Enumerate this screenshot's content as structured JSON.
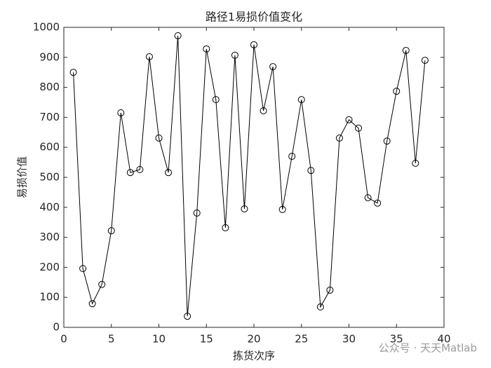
{
  "chart_data": {
    "type": "line",
    "title": "路径1易损价值变化",
    "x_label": "拣货次序",
    "y_label": "易损价值",
    "x": [
      1,
      2,
      3,
      4,
      5,
      6,
      7,
      8,
      9,
      10,
      11,
      12,
      13,
      14,
      15,
      16,
      17,
      18,
      19,
      20,
      21,
      22,
      23,
      24,
      25,
      26,
      27,
      28,
      29,
      30,
      31,
      32,
      33,
      34,
      35,
      36,
      37,
      38
    ],
    "values": [
      850,
      196,
      79,
      143,
      322,
      715,
      516,
      526,
      902,
      631,
      516,
      972,
      37,
      381,
      928,
      759,
      332,
      907,
      395,
      942,
      722,
      869,
      393,
      570,
      759,
      523,
      68,
      124,
      631,
      692,
      664,
      432,
      414,
      621,
      787,
      923,
      547,
      890
    ],
    "color": "#000000",
    "marker": "circle",
    "xlim": [
      0,
      40
    ],
    "xticks": [
      0,
      5,
      10,
      15,
      20,
      25,
      30,
      35,
      40
    ],
    "ylim": [
      0,
      1000
    ],
    "yticks": [
      0,
      100,
      200,
      300,
      400,
      500,
      600,
      700,
      800,
      900,
      1000
    ],
    "grid": false,
    "watermark": "公众号 · 天天Matlab"
  }
}
